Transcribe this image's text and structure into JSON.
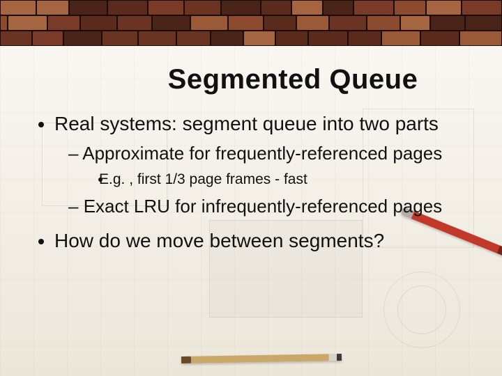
{
  "slide": {
    "title": "Segmented Queue",
    "bullets": [
      {
        "text": "Real systems: segment queue into two parts",
        "children": [
          {
            "text": "Approximate for frequently-referenced pages",
            "children": [
              {
                "text": "E.g. , first 1/3 page frames - fast"
              }
            ]
          },
          {
            "text": "Exact LRU for infrequently-referenced pages"
          }
        ]
      },
      {
        "text": "How do we move between segments?"
      }
    ]
  },
  "theme": {
    "background_top_color": "#faf7f2",
    "background_bottom_color": "#ece6da",
    "title_fontsize_pt": 30,
    "body_fontsize_pt": 21,
    "sub_fontsize_pt": 19,
    "subsub_fontsize_pt": 16,
    "text_color": "#111111",
    "brick_colors": [
      "#7a3a28",
      "#8c4a2f",
      "#5a2a1c",
      "#9a5a38",
      "#6b3322",
      "#a56540",
      "#4a2418"
    ],
    "mortar_color": "#1a0d0a"
  }
}
